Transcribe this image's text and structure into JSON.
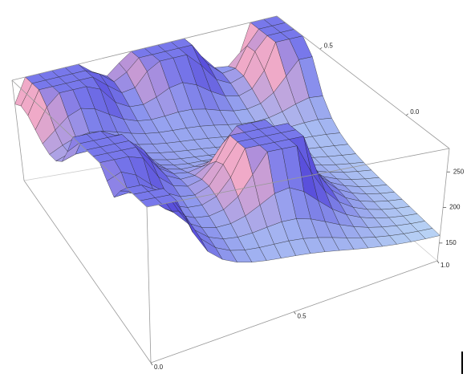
{
  "chart_data": {
    "type": "surface",
    "xlim": [
      0,
      1
    ],
    "xticks": [
      {
        "value": 0,
        "label": "0.0"
      },
      0.5,
      {
        "value": 1,
        "label": "1.0"
      }
    ],
    "ylim": [
      -0.25,
      0.75
    ],
    "yticks": [
      0.5,
      {
        "value": 0,
        "label": "0.0"
      }
    ],
    "zlim": [
      125,
      283
    ],
    "zticks": [
      150,
      200,
      250
    ]
  }
}
